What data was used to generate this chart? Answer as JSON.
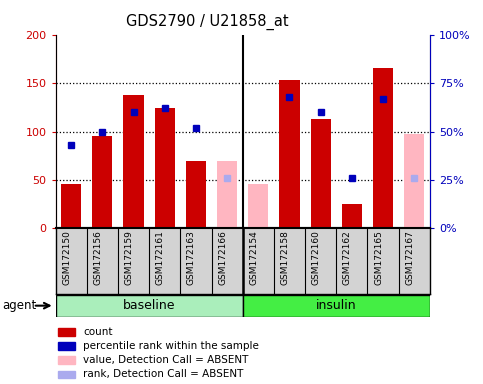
{
  "title": "GDS2790 / U21858_at",
  "samples": [
    "GSM172150",
    "GSM172156",
    "GSM172159",
    "GSM172161",
    "GSM172163",
    "GSM172166",
    "GSM172154",
    "GSM172158",
    "GSM172160",
    "GSM172162",
    "GSM172165",
    "GSM172167"
  ],
  "bar_values": [
    46,
    95,
    138,
    124,
    70,
    null,
    null,
    153,
    113,
    25,
    165,
    null
  ],
  "bar_absent_values": [
    null,
    null,
    null,
    null,
    null,
    70,
    46,
    null,
    null,
    null,
    null,
    97
  ],
  "rank_values": [
    43,
    50,
    60,
    62,
    52,
    null,
    null,
    68,
    60,
    26,
    67,
    null
  ],
  "rank_absent_values": [
    null,
    null,
    null,
    null,
    null,
    26,
    null,
    null,
    null,
    null,
    null,
    26
  ],
  "ylim_left": [
    0,
    200
  ],
  "ylim_right": [
    0,
    100
  ],
  "yticks_left": [
    0,
    50,
    100,
    150,
    200
  ],
  "yticks_right": [
    0,
    25,
    50,
    75,
    100
  ],
  "yticklabels_left": [
    "0",
    "50",
    "100",
    "150",
    "200"
  ],
  "yticklabels_right": [
    "0%",
    "25%",
    "50%",
    "75%",
    "100%"
  ],
  "bar_color": "#CC0000",
  "bar_absent_color": "#FFB6C1",
  "rank_color": "#0000BB",
  "rank_absent_color": "#AAAAEE",
  "bg_plot": "#FFFFFF",
  "bg_sample": "#D3D3D3",
  "baseline_color": "#AAEEBB",
  "insulin_color": "#44EE44",
  "legend_items": [
    {
      "color": "#CC0000",
      "label": "count",
      "marker": "square"
    },
    {
      "color": "#0000BB",
      "label": "percentile rank within the sample",
      "marker": "square"
    },
    {
      "color": "#FFB6C1",
      "label": "value, Detection Call = ABSENT",
      "marker": "square"
    },
    {
      "color": "#AAAAEE",
      "label": "rank, Detection Call = ABSENT",
      "marker": "square"
    }
  ],
  "baseline_group": {
    "label": "baseline",
    "start": 0,
    "end": 5
  },
  "insulin_group": {
    "label": "insulin",
    "start": 6,
    "end": 11
  }
}
